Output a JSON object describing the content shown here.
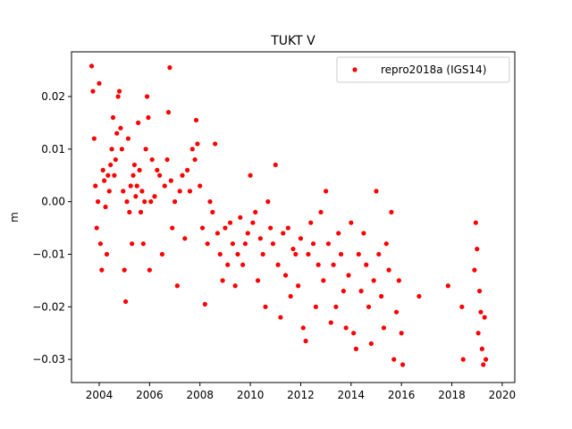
{
  "chart_data": {
    "type": "scatter",
    "title": "TUKT V",
    "xlabel": "",
    "ylabel": "m",
    "xlim": [
      2002.9,
      2020.5
    ],
    "ylim": [
      -0.0344,
      0.0285
    ],
    "xticks": [
      2004,
      2006,
      2008,
      2010,
      2012,
      2014,
      2016,
      2018,
      2020
    ],
    "xtick_labels": [
      "2004",
      "2006",
      "2008",
      "2010",
      "2012",
      "2014",
      "2016",
      "2018",
      "2020"
    ],
    "yticks": [
      0.02,
      0.01,
      0.0,
      -0.01,
      -0.02,
      -0.03
    ],
    "ytick_labels": [
      "0.02",
      "0.01",
      "0.00",
      "−0.01",
      "−0.02",
      "−0.03"
    ],
    "grid": false,
    "legend_position": "top-right",
    "series": [
      {
        "name": "repro2018a (IGS14)",
        "color": "#ff0000",
        "marker": "circle",
        "x": [
          2003.7,
          2003.75,
          2003.8,
          2003.85,
          2003.9,
          2003.95,
          2004.0,
          2004.05,
          2004.1,
          2004.15,
          2004.2,
          2004.25,
          2004.3,
          2004.35,
          2004.4,
          2004.45,
          2004.5,
          2004.55,
          2004.6,
          2004.65,
          2004.7,
          2004.75,
          2004.8,
          2004.85,
          2004.9,
          2004.95,
          2005.0,
          2005.05,
          2005.1,
          2005.15,
          2005.2,
          2005.25,
          2005.3,
          2005.35,
          2005.4,
          2005.45,
          2005.5,
          2005.55,
          2005.6,
          2005.65,
          2005.7,
          2005.75,
          2005.8,
          2005.85,
          2005.9,
          2005.95,
          2006.0,
          2006.05,
          2006.1,
          2006.2,
          2006.3,
          2006.4,
          2006.5,
          2006.6,
          2006.7,
          2006.75,
          2006.8,
          2006.85,
          2006.9,
          2007.0,
          2007.1,
          2007.2,
          2007.3,
          2007.4,
          2007.5,
          2007.6,
          2007.7,
          2007.8,
          2007.85,
          2007.9,
          2008.0,
          2008.1,
          2008.2,
          2008.3,
          2008.4,
          2008.5,
          2008.6,
          2008.7,
          2008.8,
          2008.9,
          2009.0,
          2009.1,
          2009.2,
          2009.3,
          2009.4,
          2009.5,
          2009.6,
          2009.7,
          2009.8,
          2009.9,
          2010.0,
          2010.1,
          2010.2,
          2010.3,
          2010.4,
          2010.5,
          2010.6,
          2010.7,
          2010.8,
          2010.9,
          2011.0,
          2011.1,
          2011.2,
          2011.3,
          2011.4,
          2011.5,
          2011.6,
          2011.7,
          2011.8,
          2011.9,
          2012.0,
          2012.1,
          2012.2,
          2012.3,
          2012.4,
          2012.5,
          2012.6,
          2012.7,
          2012.8,
          2012.9,
          2013.0,
          2013.1,
          2013.2,
          2013.3,
          2013.4,
          2013.5,
          2013.6,
          2013.7,
          2013.8,
          2013.9,
          2014.0,
          2014.1,
          2014.2,
          2014.3,
          2014.4,
          2014.5,
          2014.6,
          2014.7,
          2014.8,
          2014.9,
          2015.0,
          2015.1,
          2015.2,
          2015.3,
          2015.4,
          2015.5,
          2015.6,
          2015.7,
          2015.8,
          2015.9,
          2016.0,
          2016.05,
          2016.7,
          2017.85,
          2018.4,
          2018.45,
          2018.9,
          2018.95,
          2019.0,
          2019.05,
          2019.1,
          2019.15,
          2019.2,
          2019.25,
          2019.3,
          2019.35
        ],
        "y": [
          0.0258,
          0.021,
          0.012,
          0.003,
          -0.005,
          0.0,
          0.0225,
          -0.008,
          -0.013,
          0.006,
          0.004,
          -0.001,
          -0.01,
          0.005,
          0.002,
          0.007,
          0.01,
          0.016,
          0.005,
          0.008,
          0.013,
          0.02,
          0.021,
          0.014,
          0.01,
          0.002,
          -0.013,
          -0.019,
          0.0,
          0.012,
          -0.002,
          0.003,
          -0.008,
          0.005,
          0.007,
          0.001,
          0.003,
          0.015,
          0.006,
          -0.002,
          0.002,
          -0.008,
          0.0,
          0.01,
          0.02,
          0.016,
          -0.013,
          0.0,
          0.008,
          0.001,
          0.006,
          0.005,
          -0.01,
          0.003,
          0.008,
          0.017,
          0.0255,
          0.004,
          -0.005,
          0.0,
          -0.016,
          0.002,
          0.005,
          -0.007,
          0.006,
          0.002,
          0.01,
          0.008,
          0.0155,
          0.011,
          0.003,
          -0.005,
          -0.0195,
          -0.008,
          0.0,
          -0.002,
          0.011,
          -0.006,
          -0.01,
          -0.015,
          -0.005,
          -0.012,
          -0.004,
          -0.008,
          -0.016,
          -0.01,
          -0.003,
          -0.012,
          -0.008,
          -0.006,
          0.005,
          -0.004,
          -0.002,
          -0.015,
          -0.007,
          -0.01,
          -0.02,
          0.0,
          -0.005,
          -0.008,
          0.007,
          -0.012,
          -0.022,
          -0.006,
          -0.014,
          -0.005,
          -0.018,
          -0.009,
          -0.01,
          -0.016,
          -0.007,
          -0.024,
          -0.0265,
          -0.01,
          -0.004,
          -0.008,
          -0.02,
          -0.012,
          -0.002,
          -0.015,
          0.002,
          -0.008,
          -0.023,
          -0.012,
          -0.02,
          -0.006,
          -0.01,
          -0.017,
          -0.024,
          -0.014,
          -0.004,
          -0.025,
          -0.028,
          -0.01,
          -0.017,
          -0.006,
          -0.012,
          -0.02,
          -0.027,
          -0.015,
          0.002,
          -0.01,
          -0.018,
          -0.024,
          -0.008,
          -0.013,
          -0.002,
          -0.03,
          -0.021,
          -0.015,
          -0.025,
          -0.031,
          -0.018,
          -0.016,
          -0.02,
          -0.03,
          -0.013,
          -0.004,
          -0.009,
          -0.025,
          -0.017,
          -0.021,
          -0.028,
          -0.031,
          -0.022,
          -0.03
        ]
      }
    ]
  }
}
